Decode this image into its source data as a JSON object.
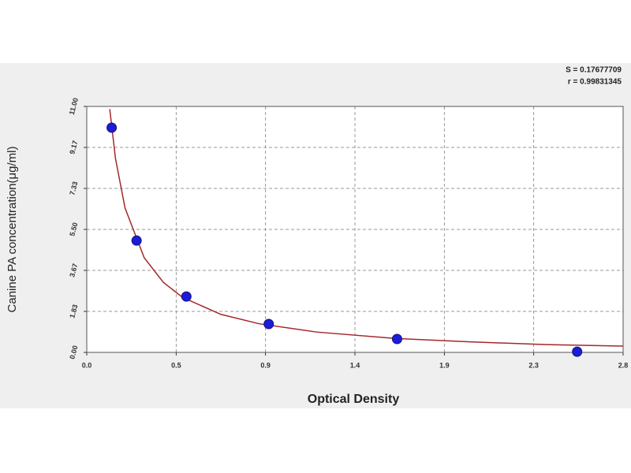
{
  "chart_data": {
    "type": "scatter",
    "xlabel": "Optical Density",
    "ylabel": "Canine PA concentration(μg/ml)",
    "annotations": [
      "S = 0.17677709",
      "r = 0.99831345"
    ],
    "xlim": [
      0,
      2.8
    ],
    "xticks": [
      {
        "value": 0,
        "label": "0.0"
      },
      {
        "value": 0.467,
        "label": "0.5"
      },
      {
        "value": 0.933,
        "label": "0.9"
      },
      1.4,
      {
        "value": 1.867,
        "label": "1.9"
      },
      {
        "value": 2.333,
        "label": "2.3"
      },
      2.8
    ],
    "ylim": [
      0,
      11
    ],
    "yticks": [
      {
        "value": 0,
        "label": "0.00"
      },
      {
        "value": 1.833,
        "label": "1.83"
      },
      {
        "value": 3.667,
        "label": "3.67"
      },
      {
        "value": 5.5,
        "label": "5.50"
      },
      {
        "value": 7.333,
        "label": "7.33"
      },
      {
        "value": 9.167,
        "label": "9.17"
      },
      {
        "value": 11,
        "label": "11.00"
      }
    ],
    "grid": true,
    "series": [
      {
        "color": "#1c1cd6",
        "x": [
          0.13,
          0.26,
          0.52,
          0.95,
          1.62,
          2.56
        ],
        "values": [
          10.05,
          5.0,
          2.5,
          1.27,
          0.6,
          0.03
        ]
      },
      {
        "color": "#a3282b",
        "line": true,
        "x": [
          0.12,
          0.15,
          0.2,
          0.3,
          0.4,
          0.5,
          0.7,
          0.9,
          1.2,
          1.6,
          2.0,
          2.4,
          2.8
        ],
        "values": [
          10.88,
          8.67,
          6.45,
          4.23,
          3.13,
          2.46,
          1.7,
          1.28,
          0.91,
          0.63,
          0.47,
          0.35,
          0.28
        ]
      }
    ]
  }
}
